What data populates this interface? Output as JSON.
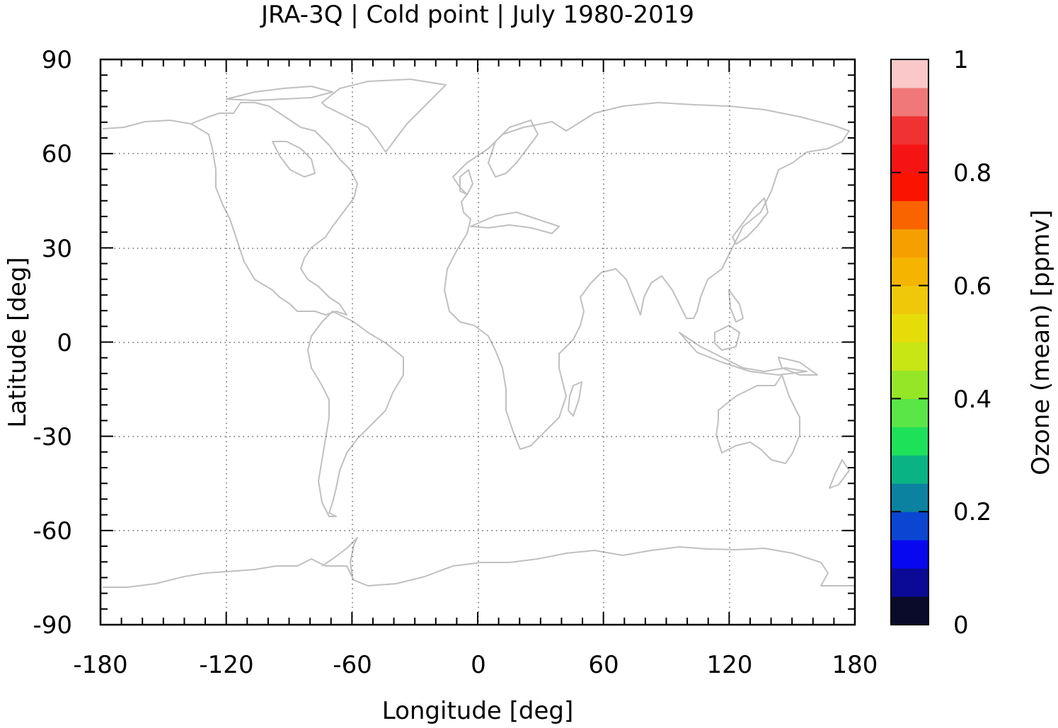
{
  "title": "JRA-3Q | Cold point | July 1980-2019",
  "xlabel": "Longitude [deg]",
  "ylabel": "Latitude [deg]",
  "x_ticks": [
    "-180",
    "-120",
    "-60",
    "0",
    "60",
    "120",
    "180"
  ],
  "y_ticks": [
    "90",
    "60",
    "30",
    "0",
    "-30",
    "-60",
    "-90"
  ],
  "colorbar": {
    "label": "Ozone (mean) [ppmv]",
    "ticks": [
      "1",
      "0.8",
      "0.6",
      "0.4",
      "0.2",
      "0"
    ],
    "range": [
      0,
      1
    ],
    "colors": [
      "#0a0a2a",
      "#0a0a96",
      "#0808f0",
      "#0a46d2",
      "#0a82a0",
      "#0ab482",
      "#1ee15a",
      "#5ae646",
      "#96e628",
      "#c8e614",
      "#e6dc0a",
      "#f0c80a",
      "#f5b400",
      "#f5a000",
      "#fa6400",
      "#fa1400",
      "#f51414",
      "#f03232",
      "#f07878",
      "#fac8c8"
    ]
  },
  "chart_data": {
    "type": "heatmap",
    "title": "JRA-3Q | Cold point | July 1980-2019",
    "xlabel": "Longitude [deg]",
    "ylabel": "Latitude [deg]",
    "xlim": [
      -180,
      180
    ],
    "ylim": [
      -90,
      90
    ],
    "x_ticks": [
      -180,
      -120,
      -60,
      0,
      60,
      120,
      180
    ],
    "y_ticks": [
      90,
      60,
      30,
      0,
      -30,
      -60,
      -90
    ],
    "grid": true,
    "colorbar_label": "Ozone (mean) [ppmv]",
    "colorbar_range": [
      0,
      1
    ],
    "colorbar_ticks": [
      0,
      0.2,
      0.4,
      0.6,
      0.8,
      1
    ],
    "colorbar_levels": 20,
    "field_values": []
  }
}
